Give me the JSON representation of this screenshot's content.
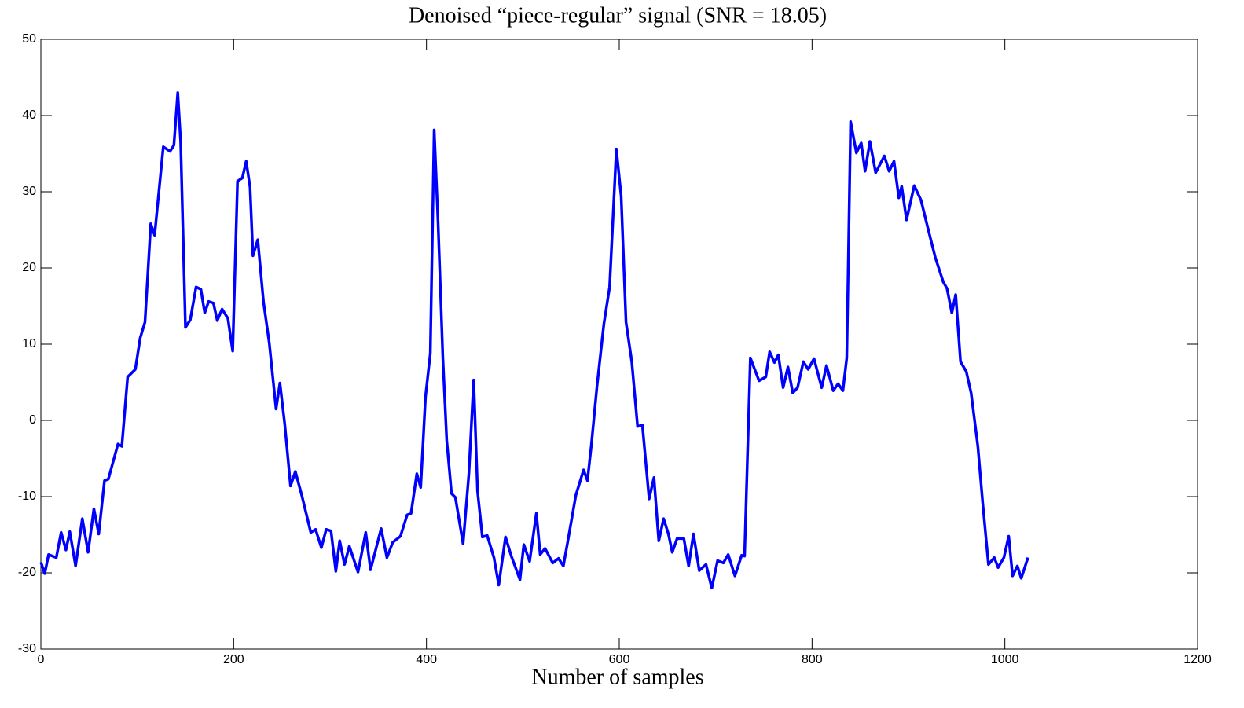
{
  "chart_data": {
    "type": "line",
    "title": "Denoised “piece-regular” signal (SNR = 18.05)",
    "x_label": "Number of samples",
    "color": "#0000ff",
    "xlim": [
      0,
      1200
    ],
    "xticks": [
      0,
      200,
      400,
      600,
      800,
      1000,
      1200
    ],
    "ylim": [
      -30,
      50
    ],
    "yticks": [
      -30,
      -20,
      -10,
      0,
      10,
      20,
      30,
      40,
      50
    ],
    "grid": false,
    "x": [
      0,
      4,
      8,
      16,
      21,
      26,
      30,
      36,
      43,
      49,
      55,
      60,
      66,
      70,
      80,
      84,
      90,
      98,
      103,
      108,
      114,
      118,
      127,
      134,
      138,
      142,
      145,
      150,
      155,
      161,
      166,
      170,
      174,
      179,
      183,
      188,
      194,
      199,
      204,
      209,
      213,
      217,
      220,
      225,
      231,
      237,
      244,
      248,
      253,
      259,
      264,
      271,
      280,
      285,
      291,
      296,
      301,
      306,
      310,
      315,
      320,
      329,
      337,
      342,
      353,
      359,
      365,
      373,
      380,
      384,
      390,
      394,
      399,
      404,
      408,
      412,
      417,
      421,
      426,
      430,
      438,
      444,
      449,
      453,
      458,
      463,
      470,
      475,
      482,
      488,
      497,
      501,
      507,
      514,
      518,
      523,
      531,
      537,
      542,
      546,
      555,
      563,
      567,
      571,
      577,
      584,
      590,
      597,
      602,
      607,
      613,
      619,
      624,
      631,
      636,
      641,
      646,
      651,
      655,
      660,
      667,
      672,
      677,
      683,
      690,
      696,
      702,
      708,
      713,
      720,
      727,
      730,
      736,
      745,
      752,
      756,
      761,
      765,
      770,
      775,
      780,
      785,
      791,
      796,
      802,
      810,
      815,
      822,
      827,
      832,
      836,
      840,
      846,
      851,
      855,
      860,
      866,
      875,
      880,
      885,
      890,
      893,
      898,
      906,
      913,
      920,
      928,
      936,
      940,
      945,
      949,
      954,
      960,
      965,
      972,
      977,
      983,
      989,
      993,
      999,
      1004,
      1008,
      1013,
      1017,
      1024
    ],
    "values": [
      -18.6,
      -20.1,
      -17.6,
      -18,
      -14.7,
      -17,
      -14.6,
      -19.1,
      -12.9,
      -17.3,
      -11.6,
      -14.9,
      -7.9,
      -7.7,
      -3.1,
      -3.4,
      5.7,
      6.7,
      10.8,
      12.9,
      25.8,
      24.3,
      35.9,
      35.3,
      36.1,
      43,
      36.6,
      12.2,
      13.2,
      17.5,
      17.2,
      14.1,
      15.6,
      15.4,
      13.1,
      14.6,
      13.4,
      9.1,
      31.4,
      31.8,
      34,
      30.6,
      21.6,
      23.7,
      15.5,
      10.1,
      1.5,
      4.9,
      -0.5,
      -8.6,
      -6.7,
      -10,
      -14.7,
      -14.3,
      -16.7,
      -14.3,
      -14.5,
      -19.8,
      -15.8,
      -18.9,
      -16.5,
      -19.9,
      -14.7,
      -19.6,
      -14.2,
      -18,
      -16,
      -15.2,
      -12.4,
      -12.2,
      -7,
      -8.8,
      3.1,
      8.8,
      38.1,
      26.1,
      8.2,
      -2.6,
      -9.6,
      -10.1,
      -16.2,
      -7,
      5.3,
      -9.3,
      -15.3,
      -15.1,
      -18,
      -21.6,
      -15.3,
      -17.8,
      -20.9,
      -16.3,
      -18.5,
      -12.2,
      -17.6,
      -16.8,
      -18.7,
      -18.1,
      -19.1,
      -16.3,
      -9.8,
      -6.5,
      -7.9,
      -3.3,
      4.6,
      12.6,
      17.5,
      35.6,
      29.4,
      12.9,
      7.7,
      -0.8,
      -0.6,
      -10.3,
      -7.5,
      -15.8,
      -12.9,
      -14.9,
      -17.3,
      -15.5,
      -15.5,
      -19.1,
      -14.9,
      -19.7,
      -18.9,
      -22,
      -18.4,
      -18.7,
      -17.6,
      -20.4,
      -17.7,
      -17.8,
      8.2,
      5.2,
      5.7,
      9,
      7.6,
      8.6,
      4.3,
      7,
      3.6,
      4.3,
      7.7,
      6.7,
      8.1,
      4.3,
      7.2,
      3.9,
      4.8,
      3.9,
      8.2,
      39.2,
      35.1,
      36.4,
      32.7,
      36.6,
      32.5,
      34.7,
      32.7,
      34,
      29.2,
      30.7,
      26.3,
      30.8,
      28.9,
      25.3,
      21.3,
      18.2,
      17.3,
      14.1,
      16.5,
      7.7,
      6.4,
      3.6,
      -3.4,
      -10.8,
      -18.9,
      -18,
      -19.3,
      -18,
      -15.2,
      -20.4,
      -19.1,
      -20.7,
      -18
    ]
  }
}
